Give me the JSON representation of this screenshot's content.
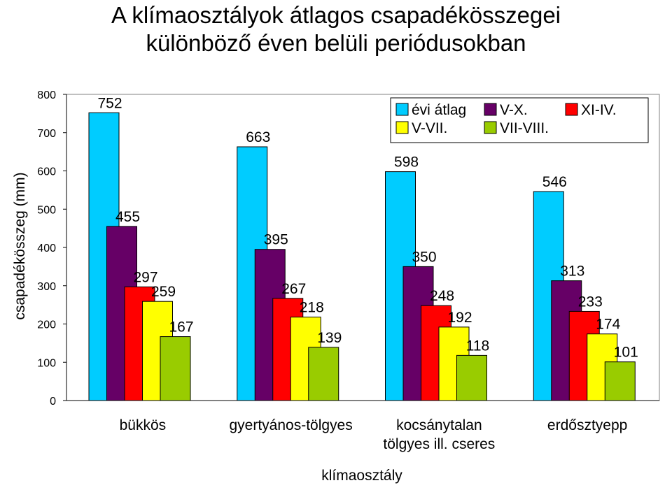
{
  "title_line1": "A klímaosztályok átlagos csapadékösszegei",
  "title_line2": "különböző éven belüli periódusokban",
  "chart_data": {
    "type": "bar",
    "title": "A klímaosztályok átlagos csapadékösszegei különböző éven belüli periódusokban",
    "xlabel": "klímaosztály",
    "ylabel": "csapadékösszeg (mm)",
    "ylim": [
      0,
      800
    ],
    "yticks": [
      0,
      100,
      200,
      300,
      400,
      500,
      600,
      700,
      800
    ],
    "grid": false,
    "legend_position": "top-right",
    "categories": [
      "bükkös",
      "gyertyános-tölgyes",
      "kocsánytalan tölgyes ill. cseres",
      "erdősztyepp"
    ],
    "category_lines": [
      [
        "bükkös"
      ],
      [
        "gyertyános-tölgyes"
      ],
      [
        "kocsánytalan",
        "tölgyes ill. cseres"
      ],
      [
        "erdősztyepp"
      ]
    ],
    "series": [
      {
        "name": "évi átlag",
        "color": "#00CCFF",
        "values": [
          752,
          663,
          598,
          546
        ]
      },
      {
        "name": "V-X.",
        "color": "#660066",
        "values": [
          455,
          395,
          350,
          313
        ]
      },
      {
        "name": "XI-IV.",
        "color": "#FF0000",
        "values": [
          297,
          267,
          248,
          233
        ]
      },
      {
        "name": "V-VII.",
        "color": "#FFFF00",
        "values": [
          259,
          218,
          192,
          174
        ]
      },
      {
        "name": "VII-VIII.",
        "color": "#99CC00",
        "values": [
          167,
          139,
          118,
          101
        ]
      }
    ]
  }
}
